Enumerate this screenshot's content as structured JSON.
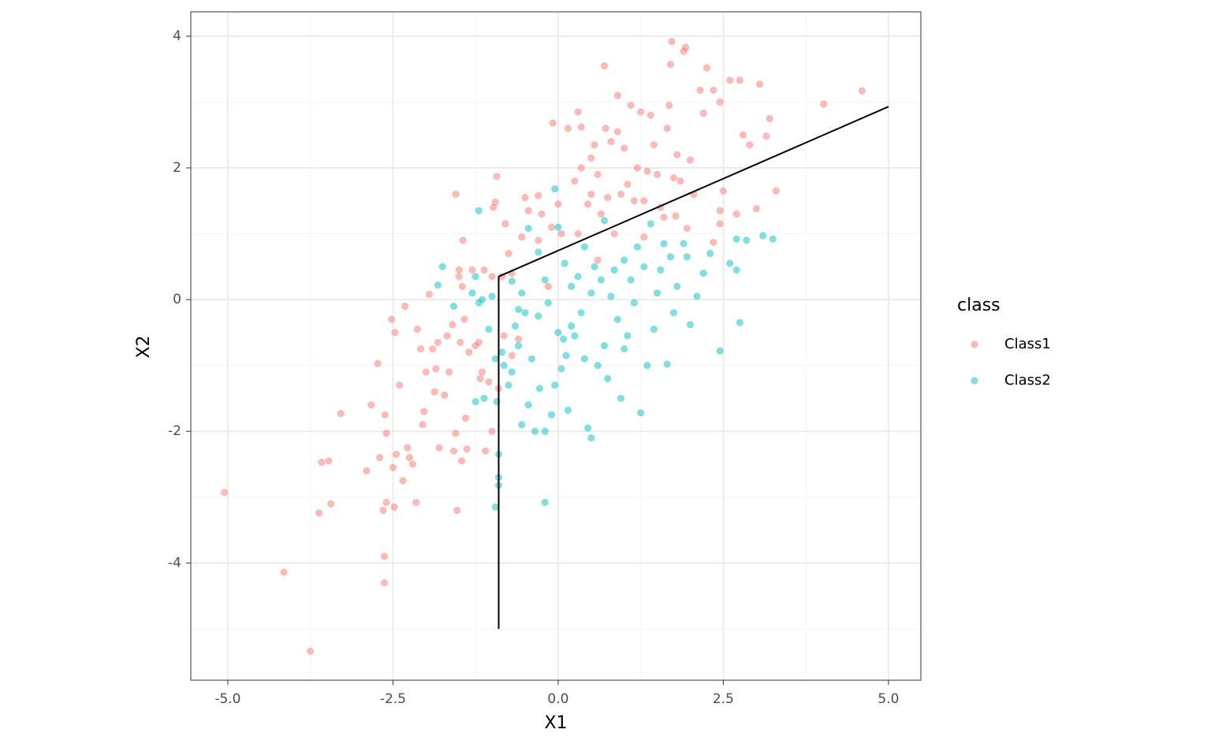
{
  "chart_data": {
    "type": "scatter",
    "x_label": "X1",
    "y_label": "X2",
    "legend_title": "class",
    "legend_position": "right",
    "xlim": [
      -5.56,
      5.49
    ],
    "ylim": [
      -5.78,
      4.37
    ],
    "xticks": [
      {
        "value": -5,
        "label": "-5.0"
      },
      {
        "value": -2.5,
        "label": "-2.5"
      },
      {
        "value": 0,
        "label": "0.0"
      },
      {
        "value": 2.5,
        "label": "2.5"
      },
      {
        "value": 5,
        "label": "5.0"
      }
    ],
    "yticks": [
      -4,
      -2,
      0,
      2,
      4
    ],
    "x_minor_grid": [
      -3.75,
      -1.25,
      1.25,
      3.75
    ],
    "y_minor_grid": [
      -5,
      -3,
      -1,
      1,
      3
    ],
    "grid": true,
    "point_opacity": 0.5,
    "series": [
      {
        "name": "Class1",
        "color": "#F8766D",
        "x": [
          -5.05,
          -4.15,
          -3.75,
          -3.62,
          -3.58,
          -3.47,
          -3.44,
          -3.29,
          -2.9,
          -2.83,
          -2.73,
          -2.7,
          -2.65,
          -2.63,
          -2.63,
          -2.62,
          -2.6,
          -2.6,
          -2.52,
          -2.5,
          -2.48,
          -2.47,
          -2.45,
          -2.4,
          -2.35,
          -2.32,
          -2.28,
          -2.25,
          -2.2,
          -2.15,
          -2.13,
          -2.08,
          -2.05,
          -2.03,
          -2.0,
          -1.95,
          -1.9,
          -1.87,
          -1.85,
          -1.82,
          -1.8,
          -1.72,
          -1.68,
          -1.65,
          -1.6,
          -1.58,
          -1.55,
          -1.55,
          -1.53,
          -1.5,
          -1.5,
          -1.48,
          -1.46,
          -1.45,
          -1.44,
          -1.42,
          -1.4,
          -1.38,
          -1.35,
          -1.3,
          -1.25,
          -1.2,
          -1.18,
          -1.15,
          -1.1,
          -1.05,
          -1.0,
          -0.98,
          -0.95,
          -0.93,
          -0.9,
          -0.85,
          -0.82,
          -0.8,
          -0.75,
          -0.7,
          -0.6,
          -0.55,
          -0.5,
          -0.45,
          -0.3,
          -0.3,
          -0.25,
          -0.15,
          -0.1,
          -0.08,
          0,
          0.05,
          0.15,
          0.25,
          0.3,
          0.3,
          0.35,
          0.35,
          0.45,
          0.5,
          0.5,
          0.55,
          0.6,
          0.65,
          0.7,
          0.72,
          0.75,
          0.8,
          0.85,
          0.9,
          0.9,
          0.95,
          1.0,
          1.05,
          1.1,
          1.15,
          1.2,
          1.25,
          1.3,
          1.35,
          1.4,
          1.45,
          1.5,
          1.55,
          1.6,
          1.65,
          1.68,
          1.7,
          1.72,
          1.75,
          1.78,
          1.8,
          1.85,
          1.9,
          1.93,
          2.0,
          2.05,
          2.15,
          2.2,
          2.25,
          2.35,
          2.45,
          2.45,
          2.5,
          2.6,
          2.75,
          2.8,
          2.9,
          3.0,
          3.05,
          3.15,
          3.2,
          3.3,
          4.02,
          4.6,
          1.3,
          0.6,
          -0.7,
          -1.12,
          -1.0,
          2.35,
          2.45,
          1.95,
          2.7
        ],
        "values": [
          -2.93,
          -4.14,
          -5.34,
          -3.24,
          -2.47,
          -2.45,
          -3.1,
          -1.73,
          -2.6,
          -1.6,
          -0.97,
          -2.4,
          -3.2,
          -3.9,
          -4.3,
          -1.75,
          -2.03,
          -3.08,
          -0.3,
          -2.55,
          -3.15,
          -0.5,
          -2.35,
          -1.3,
          -2.75,
          -0.1,
          -2.25,
          -2.4,
          -2.5,
          -3.08,
          -0.45,
          -0.75,
          -1.9,
          -1.7,
          -1.1,
          0.08,
          -0.75,
          -1.4,
          -1.05,
          -0.65,
          -2.25,
          -1.45,
          -0.55,
          -1.1,
          -0.38,
          -2.3,
          -2.03,
          1.6,
          -3.2,
          0.45,
          0.35,
          -0.65,
          -2.45,
          0.2,
          0.9,
          -0.3,
          -1.8,
          -2.27,
          -0.8,
          0.45,
          -0.7,
          -0.65,
          -1.2,
          -1.1,
          -2.3,
          -1.25,
          -2.0,
          1.4,
          1.48,
          1.87,
          -1.35,
          0.35,
          -0.55,
          1.15,
          0.7,
          -0.85,
          -0.6,
          0.95,
          1.55,
          1.35,
          1.58,
          0.9,
          1.3,
          0.2,
          1.1,
          2.68,
          1.45,
          1.0,
          2.6,
          1.8,
          1.0,
          2.85,
          2.62,
          2.0,
          1.45,
          1.6,
          2.15,
          2.35,
          1.9,
          1.3,
          3.55,
          2.6,
          1.55,
          2.4,
          1.0,
          3.1,
          2.55,
          1.6,
          2.3,
          1.75,
          2.95,
          1.5,
          2.0,
          2.85,
          1.5,
          1.95,
          2.8,
          2.35,
          1.9,
          1.4,
          1.25,
          2.6,
          2.95,
          3.57,
          3.92,
          1.85,
          1.27,
          2.2,
          1.8,
          3.77,
          3.83,
          2.12,
          1.6,
          3.18,
          2.83,
          3.52,
          3.18,
          3.0,
          1.35,
          1.65,
          3.33,
          3.33,
          2.5,
          2.35,
          1.38,
          3.27,
          2.48,
          2.75,
          1.65,
          2.97,
          3.17,
          0.95,
          0.6,
          0.4,
          0.45,
          0.35,
          0.87,
          1.15,
          1.08,
          1.3
        ]
      },
      {
        "name": "Class2",
        "color": "#00BFC4",
        "x": [
          -1.2,
          -1.75,
          -1.82,
          -1.58,
          -1.3,
          -1.25,
          -1.2,
          -1.15,
          -1.05,
          -1.0,
          -0.95,
          -0.93,
          -0.9,
          -0.95,
          -0.9,
          -0.9,
          -0.85,
          -0.82,
          -1.25,
          -1.12,
          -0.75,
          -0.7,
          -0.65,
          -0.6,
          -0.55,
          -0.55,
          -0.5,
          -0.45,
          -0.4,
          -0.35,
          -0.3,
          -0.28,
          -0.2,
          -0.2,
          -0.15,
          -0.1,
          -0.05,
          -0.05,
          0.0,
          0.05,
          0.08,
          0.1,
          0.12,
          0.15,
          0.2,
          0.25,
          0.3,
          0.35,
          0.4,
          0.45,
          0.5,
          0.55,
          0.6,
          0.65,
          0.7,
          0.75,
          0.8,
          0.85,
          0.9,
          0.95,
          1.0,
          1.05,
          1.1,
          1.15,
          1.2,
          1.25,
          1.3,
          1.35,
          1.4,
          1.45,
          1.5,
          1.55,
          1.6,
          1.65,
          1.7,
          1.75,
          1.8,
          1.9,
          1.95,
          2.0,
          2.1,
          2.2,
          2.3,
          2.45,
          2.6,
          2.7,
          2.75,
          2.85,
          3.1,
          3.25,
          -0.45,
          -0.3,
          0.0,
          0.4,
          0.7,
          -0.7,
          -0.2,
          0.5,
          1.0,
          -0.6,
          0.2,
          2.7
        ],
        "values": [
          1.35,
          0.5,
          0.22,
          -0.1,
          0.1,
          0.35,
          -0.05,
          0.0,
          -0.45,
          0.05,
          -0.9,
          -1.55,
          -2.35,
          -3.15,
          -2.7,
          -2.82,
          -0.8,
          -1.0,
          -1.55,
          -1.5,
          -1.3,
          -1.1,
          -0.4,
          -0.7,
          0.1,
          -1.9,
          -0.2,
          -1.6,
          -0.9,
          -2.0,
          -0.25,
          -1.35,
          -3.08,
          -2.0,
          -0.05,
          -1.75,
          1.68,
          -1.3,
          -0.5,
          -1.05,
          -0.6,
          0.55,
          -0.85,
          -1.68,
          0.2,
          -0.55,
          0.35,
          -0.2,
          -0.9,
          -1.95,
          -2.1,
          0.5,
          -1.0,
          0.3,
          -0.7,
          -1.2,
          0.05,
          0.45,
          -0.3,
          -1.5,
          0.6,
          -0.55,
          0.3,
          -0.05,
          0.8,
          -1.72,
          0.5,
          -1.0,
          1.15,
          -0.45,
          0.1,
          0.45,
          0.85,
          -0.98,
          0.65,
          -0.2,
          0.2,
          0.85,
          0.65,
          -0.38,
          0.05,
          0.4,
          0.7,
          -0.78,
          0.55,
          0.92,
          -0.35,
          0.9,
          0.97,
          0.92,
          1.08,
          0.72,
          1.1,
          0.8,
          1.2,
          0.28,
          0.3,
          0.1,
          -0.75,
          -0.15,
          -0.4,
          0.45
        ]
      }
    ],
    "lines": [
      {
        "x": [
          -0.9,
          -0.9,
          5.0
        ],
        "y": [
          -5.0,
          0.35,
          2.93
        ],
        "color": "#000000"
      }
    ]
  }
}
